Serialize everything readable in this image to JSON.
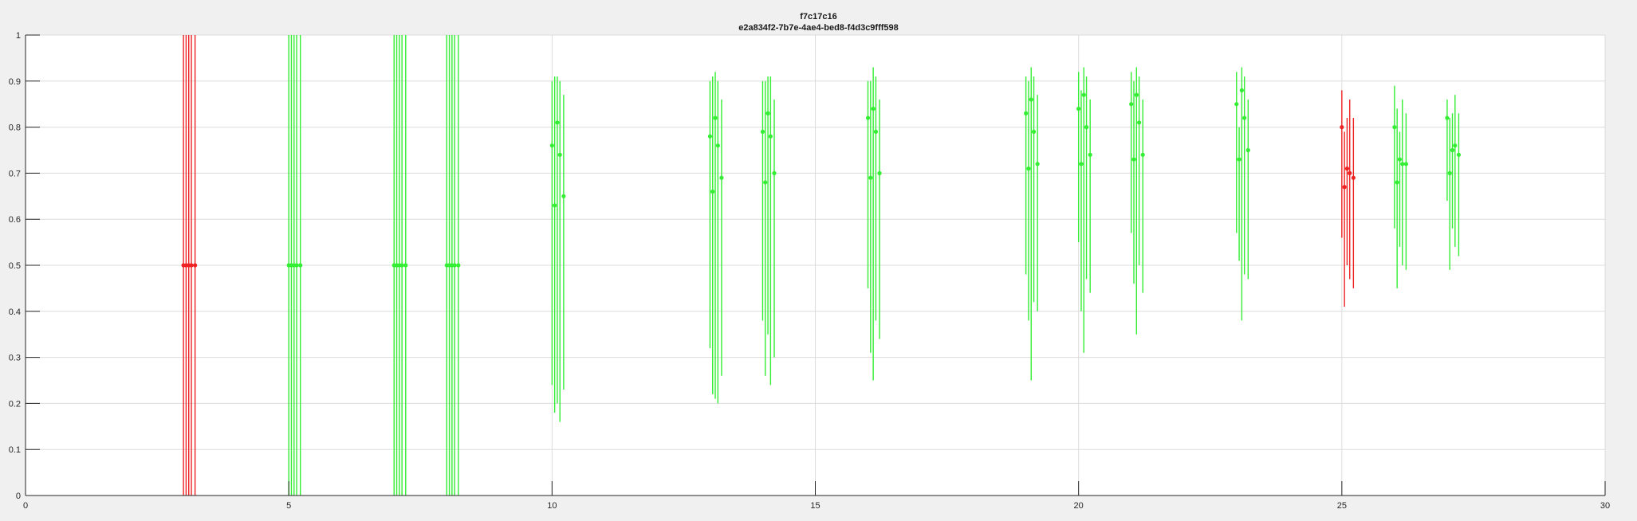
{
  "title": "f7c17c16",
  "subtitle": "e2a834f2-7b7e-4ae4-bed8-f4d3c9fff598",
  "colors": {
    "green": "#33ee33",
    "red": "#ee2222",
    "grid": "#dcdcdc",
    "axis": "#262626",
    "plot_bg": "#ffffff",
    "figure_bg": "#f0f0f0"
  },
  "chart_data": {
    "type": "errorbar",
    "xlim": [
      0,
      30
    ],
    "ylim": [
      0,
      1
    ],
    "xticks": [
      0,
      5,
      10,
      15,
      20,
      25,
      30
    ],
    "yticks": [
      0,
      0.1,
      0.2,
      0.3,
      0.4,
      0.5,
      0.6,
      0.7,
      0.8,
      0.9,
      1
    ],
    "grid": true,
    "groups": [
      {
        "x": 3,
        "color": "red",
        "points": [
          [
            0.5,
            0,
            1
          ],
          [
            0.5,
            0,
            1
          ],
          [
            0.5,
            0,
            1
          ],
          [
            0.5,
            0,
            1
          ],
          [
            0.5,
            0,
            1
          ]
        ]
      },
      {
        "x": 5,
        "color": "green",
        "points": [
          [
            0.5,
            0,
            1
          ],
          [
            0.5,
            0,
            1
          ],
          [
            0.5,
            0,
            1
          ],
          [
            0.5,
            0,
            1
          ],
          [
            0.5,
            0,
            1
          ]
        ]
      },
      {
        "x": 7,
        "color": "green",
        "points": [
          [
            0.5,
            0,
            1
          ],
          [
            0.5,
            0,
            1
          ],
          [
            0.5,
            0,
            1
          ],
          [
            0.5,
            0,
            1
          ],
          [
            0.5,
            0,
            1
          ]
        ]
      },
      {
        "x": 8,
        "color": "green",
        "points": [
          [
            0.5,
            0,
            1
          ],
          [
            0.5,
            0,
            1
          ],
          [
            0.5,
            0,
            1
          ],
          [
            0.5,
            0,
            1
          ],
          [
            0.5,
            0,
            1
          ]
        ]
      },
      {
        "x": 10,
        "color": "green",
        "points": [
          [
            0.76,
            0.24,
            0.9
          ],
          [
            0.63,
            0.18,
            0.91
          ],
          [
            0.81,
            0.2,
            0.91
          ],
          [
            0.74,
            0.16,
            0.9
          ],
          [
            0.65,
            0.23,
            0.87
          ]
        ]
      },
      {
        "x": 13,
        "color": "green",
        "points": [
          [
            0.78,
            0.32,
            0.9
          ],
          [
            0.66,
            0.22,
            0.91
          ],
          [
            0.82,
            0.21,
            0.92
          ],
          [
            0.76,
            0.2,
            0.9
          ],
          [
            0.69,
            0.26,
            0.86
          ]
        ]
      },
      {
        "x": 14,
        "color": "green",
        "points": [
          [
            0.79,
            0.38,
            0.9
          ],
          [
            0.68,
            0.26,
            0.9
          ],
          [
            0.83,
            0.35,
            0.91
          ],
          [
            0.78,
            0.24,
            0.91
          ],
          [
            0.7,
            0.3,
            0.86
          ]
        ]
      },
      {
        "x": 16,
        "color": "green",
        "points": [
          [
            0.82,
            0.45,
            0.9
          ],
          [
            0.69,
            0.31,
            0.9
          ],
          [
            0.84,
            0.25,
            0.93
          ],
          [
            0.79,
            0.38,
            0.91
          ],
          [
            0.7,
            0.34,
            0.86
          ]
        ]
      },
      {
        "x": 19,
        "color": "green",
        "points": [
          [
            0.83,
            0.48,
            0.91
          ],
          [
            0.71,
            0.38,
            0.9
          ],
          [
            0.86,
            0.25,
            0.93
          ],
          [
            0.79,
            0.42,
            0.91
          ],
          [
            0.72,
            0.4,
            0.87
          ]
        ]
      },
      {
        "x": 20,
        "color": "green",
        "points": [
          [
            0.84,
            0.55,
            0.92
          ],
          [
            0.72,
            0.4,
            0.88
          ],
          [
            0.87,
            0.31,
            0.93
          ],
          [
            0.8,
            0.47,
            0.91
          ],
          [
            0.74,
            0.44,
            0.86
          ]
        ]
      },
      {
        "x": 21,
        "color": "green",
        "points": [
          [
            0.85,
            0.57,
            0.92
          ],
          [
            0.73,
            0.46,
            0.9
          ],
          [
            0.87,
            0.35,
            0.93
          ],
          [
            0.81,
            0.5,
            0.91
          ],
          [
            0.74,
            0.44,
            0.86
          ]
        ]
      },
      {
        "x": 23,
        "color": "green",
        "points": [
          [
            0.85,
            0.57,
            0.92
          ],
          [
            0.73,
            0.51,
            0.8
          ],
          [
            0.88,
            0.38,
            0.93
          ],
          [
            0.82,
            0.48,
            0.91
          ],
          [
            0.75,
            0.47,
            0.86
          ]
        ]
      },
      {
        "x": 25,
        "color": "red",
        "points": [
          [
            0.8,
            0.56,
            0.88
          ],
          [
            0.67,
            0.41,
            0.79
          ],
          [
            0.71,
            0.5,
            0.82
          ],
          [
            0.7,
            0.47,
            0.86
          ],
          [
            0.69,
            0.45,
            0.82
          ]
        ]
      },
      {
        "x": 26,
        "color": "green",
        "points": [
          [
            0.8,
            0.58,
            0.89
          ],
          [
            0.68,
            0.45,
            0.84
          ],
          [
            0.73,
            0.54,
            0.79
          ],
          [
            0.72,
            0.5,
            0.86
          ],
          [
            0.72,
            0.49,
            0.83
          ]
        ]
      },
      {
        "x": 27,
        "color": "green",
        "points": [
          [
            0.82,
            0.64,
            0.86
          ],
          [
            0.7,
            0.49,
            0.82
          ],
          [
            0.75,
            0.58,
            0.83
          ],
          [
            0.76,
            0.54,
            0.87
          ],
          [
            0.74,
            0.52,
            0.83
          ]
        ]
      }
    ]
  }
}
